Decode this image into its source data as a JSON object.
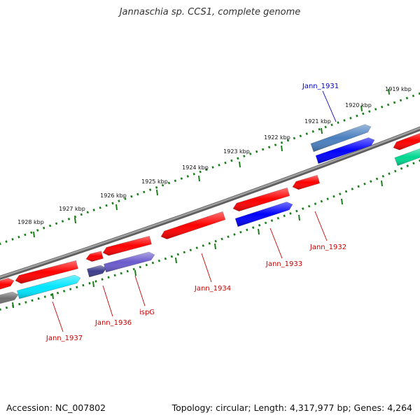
{
  "title": "Jannaschia sp. CCS1, complete genome",
  "footer": {
    "accession": "Accession: NC_007802",
    "summary": "Topology: circular; Length: 4,317,977 bp; Genes: 4,264"
  },
  "colors": {
    "backbone": "#808080",
    "tick": "#1a7f1a",
    "gene_red": "#ff0000",
    "gene_blue": "#0000ff",
    "gene_steel": "#4a7fbf",
    "gene_cyan": "#00e5ff",
    "gene_purple": "#6a5acd",
    "gene_navy": "#3c3c8c",
    "gene_gray": "#707070",
    "gene_green": "#00d890",
    "label_red": "#cc0000",
    "label_blue": "#0000cc"
  },
  "ticks": [
    "1919 kbp",
    "1920 kbp",
    "1921 kbp",
    "1922 kbp",
    "1923 kbp",
    "1924 kbp",
    "1925 kbp",
    "1926 kbp",
    "1927 kbp",
    "1928 kbp"
  ],
  "gene_labels": [
    "Jann_1931",
    "Jann_1932",
    "Jann_1933",
    "Jann_1934",
    "ispG",
    "Jann_1936",
    "Jann_1937"
  ]
}
